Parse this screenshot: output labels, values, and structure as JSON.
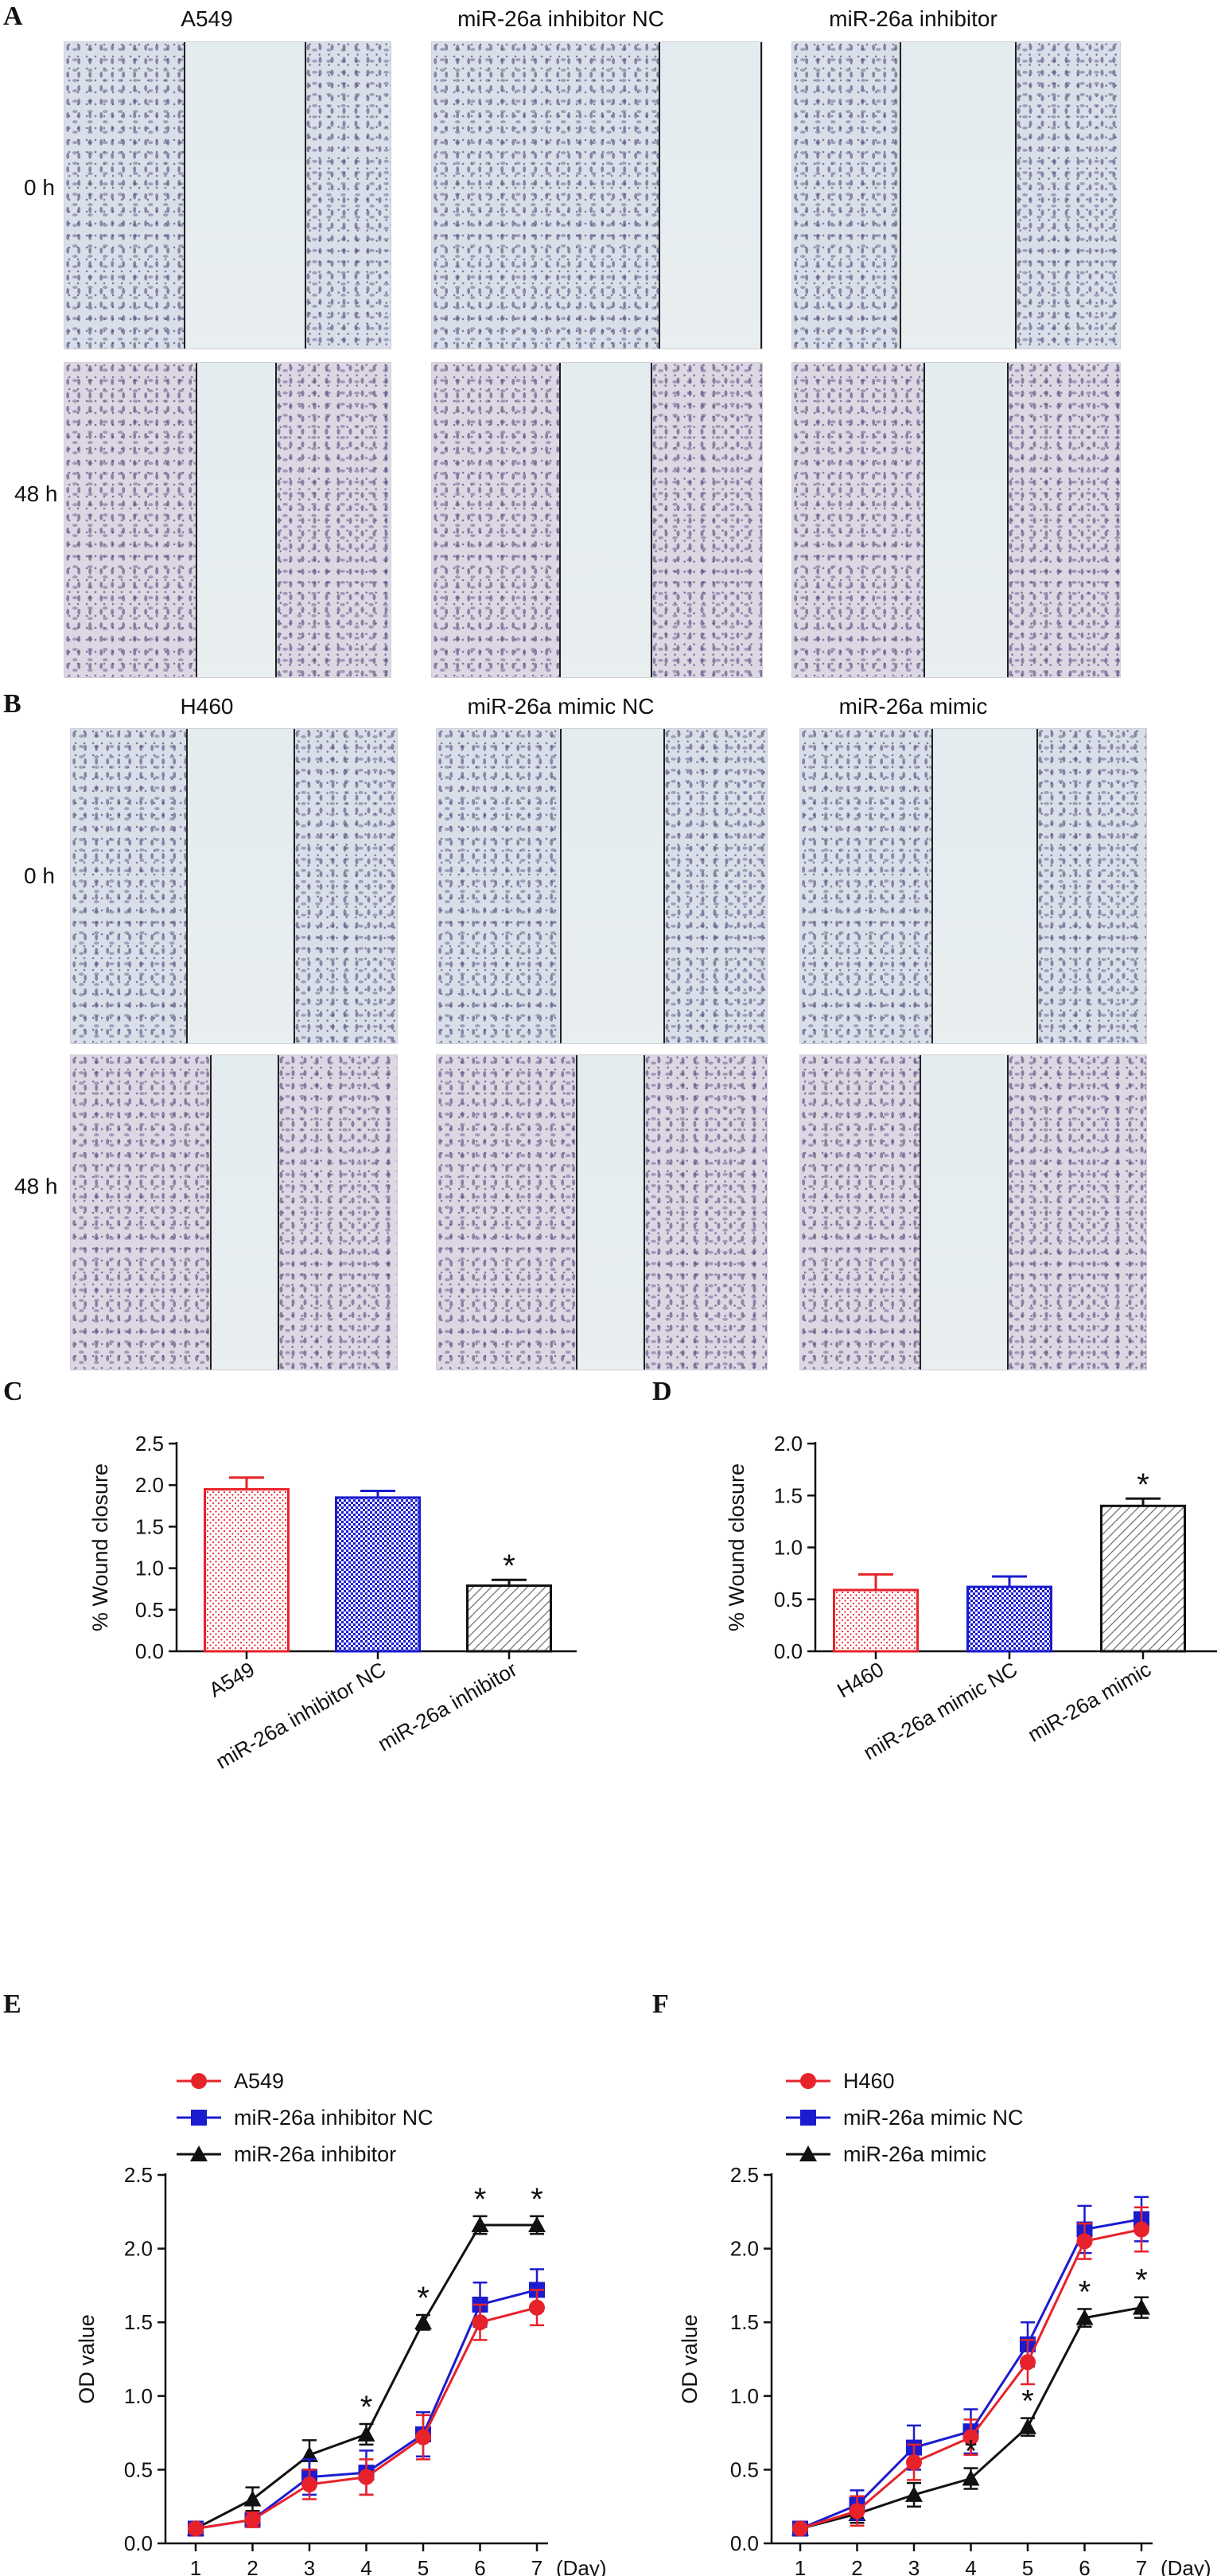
{
  "panels": {
    "A": "A",
    "B": "B",
    "C": "C",
    "D": "D",
    "E": "E",
    "F": "F"
  },
  "micrographs": {
    "A": {
      "columns": [
        "A549",
        "miR-26a inhibitor NC",
        "miR-26a inhibitor"
      ],
      "rows": [
        "0 h",
        "48 h"
      ]
    },
    "B": {
      "columns": [
        "H460",
        "miR-26a mimic NC",
        "miR-26a mimic"
      ],
      "rows": [
        "0 h",
        "48 h"
      ]
    }
  },
  "colors": {
    "red": "#e8222a",
    "blue": "#1b1bd0",
    "black": "#111111",
    "grey": "#6a6a6a"
  },
  "chart_data": [
    {
      "id": "C",
      "type": "bar",
      "ylabel": "% Wound closure",
      "ylim": [
        0,
        2.5
      ],
      "yticks": [
        "0.0",
        "0.5",
        "1.0",
        "1.5",
        "2.0",
        "2.5"
      ],
      "categories": [
        "A549",
        "miR-26a inhibitor NC",
        "miR-26a inhibitor"
      ],
      "values": [
        1.95,
        1.85,
        0.79
      ],
      "errors": [
        0.14,
        0.08,
        0.07
      ],
      "significance": [
        "",
        "",
        "*"
      ],
      "bar_styles": [
        "red-dots",
        "blue-checker",
        "black-hatch"
      ]
    },
    {
      "id": "D",
      "type": "bar",
      "ylabel": "% Wound closure",
      "ylim": [
        0,
        2.0
      ],
      "yticks": [
        "0.0",
        "0.5",
        "1.0",
        "1.5",
        "2.0"
      ],
      "categories": [
        "H460",
        "miR-26a mimic NC",
        "miR-26a mimic"
      ],
      "values": [
        0.59,
        0.62,
        1.4
      ],
      "errors": [
        0.15,
        0.1,
        0.07
      ],
      "significance": [
        "",
        "",
        "*"
      ],
      "bar_styles": [
        "red-dots",
        "blue-checker",
        "black-hatch"
      ]
    },
    {
      "id": "E",
      "type": "line",
      "ylabel": "OD value",
      "xunit": "(Day)",
      "ylim": [
        0,
        2.5
      ],
      "yticks": [
        "0.0",
        "0.5",
        "1.0",
        "1.5",
        "2.0",
        "2.5"
      ],
      "x": [
        1,
        2,
        3,
        4,
        5,
        6,
        7
      ],
      "series": [
        {
          "name": "A549",
          "marker": "circle",
          "color": "#e8222a",
          "values": [
            0.1,
            0.16,
            0.4,
            0.45,
            0.72,
            1.5,
            1.6
          ],
          "errors": [
            0.03,
            0.05,
            0.1,
            0.12,
            0.15,
            0.12,
            0.12
          ]
        },
        {
          "name": "miR-26a inhibitor NC",
          "marker": "square",
          "color": "#1b1bd0",
          "values": [
            0.1,
            0.16,
            0.45,
            0.48,
            0.74,
            1.62,
            1.72
          ],
          "errors": [
            0.03,
            0.04,
            0.12,
            0.15,
            0.15,
            0.15,
            0.14
          ]
        },
        {
          "name": "miR-26a inhibitor",
          "marker": "triangle",
          "color": "#111111",
          "values": [
            0.1,
            0.3,
            0.6,
            0.74,
            1.5,
            2.16,
            2.16
          ],
          "errors": [
            0.03,
            0.08,
            0.1,
            0.07,
            0.05,
            0.06,
            0.06
          ]
        }
      ],
      "significance_x": [
        4,
        5,
        6,
        7
      ],
      "significance_label": "*"
    },
    {
      "id": "F",
      "type": "line",
      "ylabel": "OD value",
      "xunit": "(Day)",
      "ylim": [
        0,
        2.5
      ],
      "yticks": [
        "0.0",
        "0.5",
        "1.0",
        "1.5",
        "2.0",
        "2.5"
      ],
      "x": [
        1,
        2,
        3,
        4,
        5,
        6,
        7
      ],
      "series": [
        {
          "name": "H460",
          "marker": "circle",
          "color": "#e8222a",
          "values": [
            0.1,
            0.22,
            0.55,
            0.72,
            1.23,
            2.05,
            2.13
          ],
          "errors": [
            0.02,
            0.1,
            0.12,
            0.12,
            0.15,
            0.12,
            0.15
          ]
        },
        {
          "name": "miR-26a mimic NC",
          "marker": "square",
          "color": "#1b1bd0",
          "values": [
            0.1,
            0.26,
            0.65,
            0.76,
            1.35,
            2.13,
            2.2
          ],
          "errors": [
            0.02,
            0.1,
            0.15,
            0.15,
            0.15,
            0.16,
            0.15
          ]
        },
        {
          "name": "miR-26a mimic",
          "marker": "triangle",
          "color": "#111111",
          "values": [
            0.1,
            0.2,
            0.33,
            0.44,
            0.79,
            1.53,
            1.6
          ],
          "errors": [
            0.02,
            0.06,
            0.08,
            0.07,
            0.06,
            0.06,
            0.07
          ]
        }
      ],
      "significance_x": [
        4,
        5,
        6,
        7
      ],
      "significance_label": "*"
    }
  ]
}
